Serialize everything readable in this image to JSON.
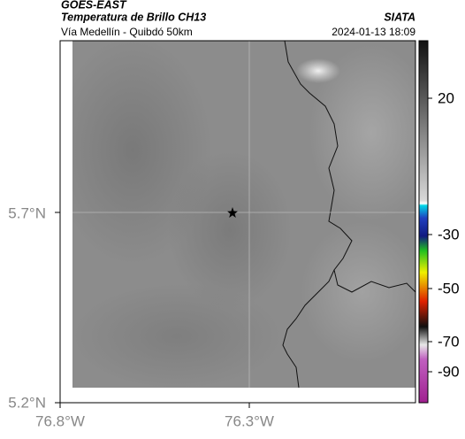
{
  "header": {
    "source": "GOES-EAST",
    "title": "Temperatura de Brillo CH13",
    "agency": "SIATA",
    "subtitle": "Vía Medellín - Quibdó 50km",
    "timestamp": "2024-01-13 18:09"
  },
  "map": {
    "lat_labels": [
      "5.7°N",
      "5.2°N"
    ],
    "lon_labels": [
      "76.8°W",
      "76.3°W"
    ]
  },
  "colorbar": {
    "ticks": [
      "20",
      "-30",
      "-50",
      "-70",
      "-90"
    ]
  }
}
